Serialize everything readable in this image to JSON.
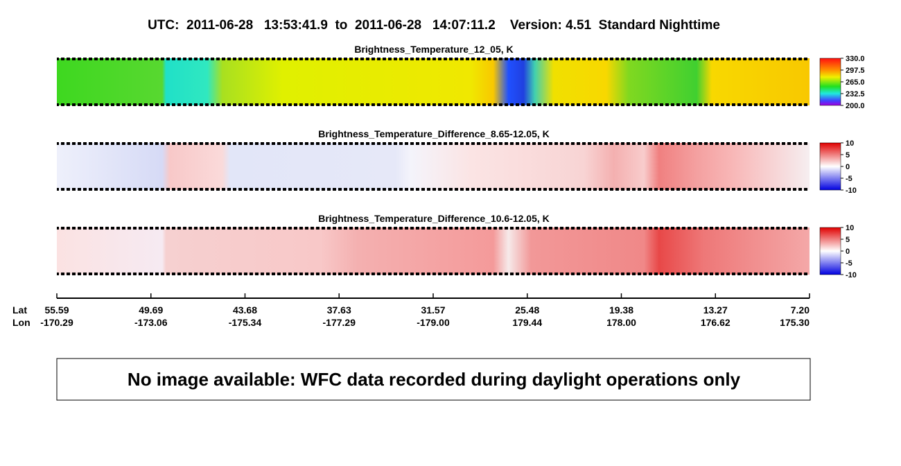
{
  "header": {
    "title": "UTC:  2011-06-28   13:53:41.9  to  2011-06-28   14:07:11.2    Version: 4.51  Standard Nighttime"
  },
  "panels": [
    {
      "title": "Brightness_Temperature_12_05, K",
      "colorbar_ticks": [
        "330.0",
        "297.5",
        "265.0",
        "232.5",
        "200.0"
      ]
    },
    {
      "title": "Brightness_Temperature_Difference_8.65-12.05, K",
      "colorbar_ticks": [
        "10",
        "5",
        "0",
        "-5",
        "-10"
      ]
    },
    {
      "title": "Brightness_Temperature_Difference_10.6-12.05, K",
      "colorbar_ticks": [
        "10",
        "5",
        "0",
        "-5",
        "-10"
      ]
    }
  ],
  "axis": {
    "lat_label": "Lat",
    "lon_label": "Lon",
    "lat": [
      "55.59",
      "49.69",
      "43.68",
      "37.63",
      "31.57",
      "25.48",
      "19.38",
      "13.27",
      "7.20"
    ],
    "lon": [
      "-170.29",
      "-173.06",
      "-175.34",
      "-177.29",
      "-179.00",
      "179.44",
      "178.00",
      "176.62",
      "175.30"
    ]
  },
  "message": "No image available: WFC data recorded during daylight operations only"
}
